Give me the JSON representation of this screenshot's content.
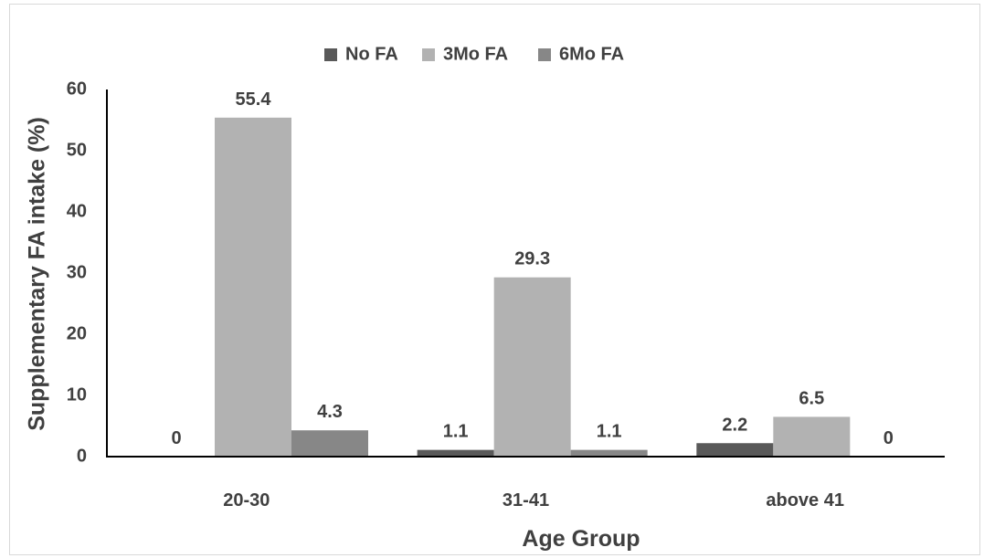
{
  "chart_data": {
    "type": "bar",
    "title": "",
    "xlabel": "Age Group",
    "ylabel": "Supplementary FA intake (%)",
    "categories": [
      "20-30",
      "31-41",
      "above 41"
    ],
    "series": [
      {
        "name": "No FA",
        "color": "#595959",
        "values": [
          0,
          1.1,
          2.2
        ]
      },
      {
        "name": "3Mo FA",
        "color": "#b2b2b2",
        "values": [
          55.4,
          29.3,
          6.5
        ]
      },
      {
        "name": "6Mo FA",
        "color": "#878787",
        "values": [
          4.3,
          1.1,
          0
        ]
      }
    ],
    "data_labels": [
      [
        "0",
        "1.1",
        "2.2"
      ],
      [
        "55.4",
        "29.3",
        "6.5"
      ],
      [
        "4.3",
        "1.1",
        "0"
      ]
    ],
    "ylim": [
      0,
      60
    ],
    "yticks": [
      0,
      10,
      20,
      30,
      40,
      50,
      60
    ],
    "ytick_labels": [
      "0",
      "10",
      "20",
      "30",
      "40",
      "50",
      "60"
    ],
    "grid": false,
    "legend_position": "top-center"
  }
}
